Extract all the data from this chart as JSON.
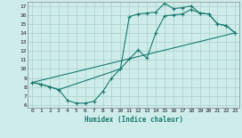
{
  "xlabel": "Humidex (Indice chaleur)",
  "xlim": [
    -0.5,
    23.5
  ],
  "ylim": [
    5.7,
    17.5
  ],
  "xticks": [
    0,
    1,
    2,
    3,
    4,
    5,
    6,
    7,
    8,
    9,
    10,
    11,
    12,
    13,
    14,
    15,
    16,
    17,
    18,
    19,
    20,
    21,
    22,
    23
  ],
  "yticks": [
    6,
    7,
    8,
    9,
    10,
    11,
    12,
    13,
    14,
    15,
    16,
    17
  ],
  "bg_color": "#ceecea",
  "grid_color": "#aed4d0",
  "line_color": "#1a7a6e",
  "line1_x": [
    0,
    1,
    2,
    3,
    4,
    5,
    6,
    7,
    8,
    9,
    10,
    11,
    12,
    13,
    14,
    15,
    16,
    17,
    18,
    19,
    20,
    21,
    22,
    23
  ],
  "line1_y": [
    8.5,
    8.3,
    8.0,
    7.7,
    6.5,
    6.2,
    6.2,
    6.4,
    7.5,
    9.0,
    10.0,
    11.1,
    12.1,
    11.2,
    14.0,
    15.9,
    16.0,
    16.1,
    16.6,
    16.2,
    16.1,
    15.0,
    14.8,
    14.0
  ],
  "line2_x": [
    0,
    1,
    2,
    3,
    10,
    11,
    12,
    13,
    14,
    15,
    16,
    17,
    18,
    19,
    20,
    21,
    22,
    23
  ],
  "line2_y": [
    8.5,
    8.3,
    8.0,
    7.7,
    10.0,
    15.8,
    16.1,
    16.2,
    16.3,
    17.3,
    16.7,
    16.8,
    17.0,
    16.2,
    16.1,
    15.0,
    14.8,
    14.0
  ],
  "line3_x": [
    0,
    23
  ],
  "line3_y": [
    8.5,
    14.0
  ]
}
